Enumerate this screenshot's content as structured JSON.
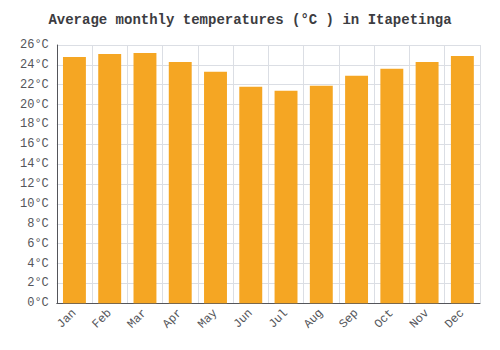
{
  "chart_data": {
    "type": "bar",
    "title": "Average monthly temperatures (°C ) in Itapetinga",
    "categories": [
      "Jan",
      "Feb",
      "Mar",
      "Apr",
      "May",
      "Jun",
      "Jul",
      "Aug",
      "Sep",
      "Oct",
      "Nov",
      "Dec"
    ],
    "values": [
      24.8,
      25.1,
      25.2,
      24.3,
      23.3,
      21.8,
      21.4,
      21.9,
      22.9,
      23.6,
      24.3,
      24.9
    ],
    "color": "#F5A623",
    "ylim": [
      0,
      26
    ],
    "yticks": [
      {
        "value": 0,
        "label": "0°C"
      },
      {
        "value": 2,
        "label": "2°C"
      },
      {
        "value": 4,
        "label": "4°C"
      },
      {
        "value": 6,
        "label": "6°C"
      },
      {
        "value": 8,
        "label": "8°C"
      },
      {
        "value": 10,
        "label": "10°C"
      },
      {
        "value": 12,
        "label": "12°C"
      },
      {
        "value": 14,
        "label": "14°C"
      },
      {
        "value": 16,
        "label": "16°C"
      },
      {
        "value": 18,
        "label": "18°C"
      },
      {
        "value": 20,
        "label": "20°C"
      },
      {
        "value": 22,
        "label": "22°C"
      },
      {
        "value": 24,
        "label": "24°C"
      },
      {
        "value": 26,
        "label": "26°C"
      }
    ],
    "grid": true
  }
}
